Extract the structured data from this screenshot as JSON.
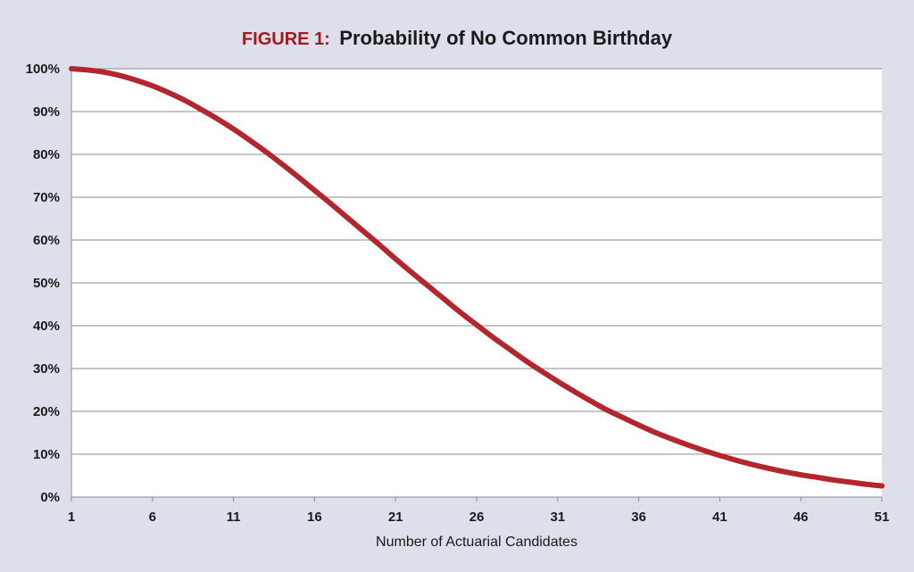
{
  "colors": {
    "background": "#dde0ea",
    "plot_area": "#ffffff",
    "series": "#b3262e",
    "title_prefix": "#9e1b21",
    "title_main": "#1a1a1a",
    "grid": "#8c8c8c"
  },
  "chart_data": {
    "type": "line",
    "title_prefix": "FIGURE 1:",
    "title": "Probability of No Common Birthday",
    "xlabel": "Number of Actuarial Candidates",
    "ylabel": "",
    "xlim": [
      1,
      51
    ],
    "ylim": [
      0,
      100
    ],
    "x_ticks": [
      1,
      6,
      11,
      16,
      21,
      26,
      31,
      36,
      41,
      46,
      51
    ],
    "y_ticks": [
      0,
      10,
      20,
      30,
      40,
      50,
      60,
      70,
      80,
      90,
      100
    ],
    "y_tick_labels": [
      "0%",
      "10%",
      "20%",
      "30%",
      "40%",
      "50%",
      "60%",
      "70%",
      "80%",
      "90%",
      "100%"
    ],
    "grid": true,
    "legend": "none",
    "series": [
      {
        "x": [
          1,
          2,
          3,
          4,
          5,
          6,
          7,
          8,
          9,
          10,
          11,
          12,
          13,
          14,
          15,
          16,
          17,
          18,
          19,
          20,
          21,
          22,
          23,
          24,
          25,
          26,
          27,
          28,
          29,
          30,
          31,
          32,
          33,
          34,
          35,
          36,
          37,
          38,
          39,
          40,
          41,
          42,
          43,
          44,
          45,
          46,
          47,
          48,
          49,
          50,
          51
        ],
        "values": [
          100.0,
          99.7,
          99.2,
          98.4,
          97.3,
          96.0,
          94.4,
          92.6,
          90.5,
          88.3,
          85.9,
          83.3,
          80.6,
          77.7,
          74.7,
          71.6,
          68.5,
          65.3,
          62.1,
          58.9,
          55.6,
          52.4,
          49.3,
          46.2,
          43.1,
          40.2,
          37.3,
          34.6,
          31.9,
          29.4,
          27.0,
          24.7,
          22.5,
          20.4,
          18.6,
          16.8,
          15.1,
          13.6,
          12.2,
          10.9,
          9.7,
          8.6,
          7.6,
          6.7,
          5.9,
          5.2,
          4.6,
          4.0,
          3.5,
          3.0,
          2.6
        ]
      }
    ]
  }
}
